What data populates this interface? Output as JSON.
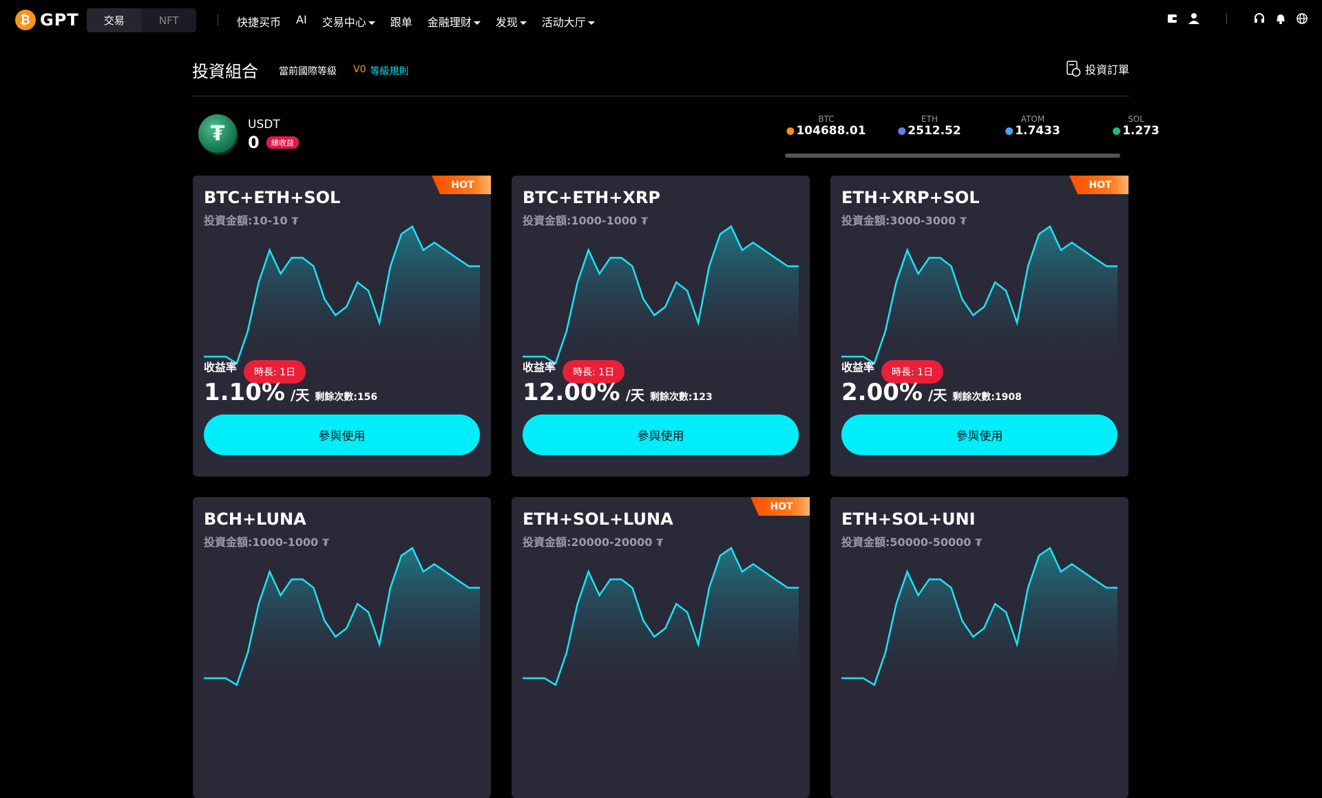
{
  "nav": {
    "logo": "GPT",
    "tabs": [
      "交易",
      "NFT"
    ],
    "links": [
      {
        "label": "快捷买币",
        "dropdown": false
      },
      {
        "label": "AI",
        "dropdown": false
      },
      {
        "label": "交易中心",
        "dropdown": true
      },
      {
        "label": "跟单",
        "dropdown": false
      },
      {
        "label": "金融理财",
        "dropdown": true
      },
      {
        "label": "发现",
        "dropdown": true
      },
      {
        "label": "活动大厅",
        "dropdown": true
      }
    ]
  },
  "header": {
    "title": "投資組合",
    "level_label": "當前國際等級",
    "level": "V0",
    "rules": "等級規則",
    "orders": "投資訂單"
  },
  "balance": {
    "currency": "USDT",
    "amount": "0",
    "badge": "總收益"
  },
  "tickers": [
    {
      "symbol": "BTC",
      "price": "104688.01",
      "color": "#f7931a"
    },
    {
      "symbol": "ETH",
      "price": "2512.52",
      "color": "#627eea"
    },
    {
      "symbol": "ATOM",
      "price": "1.7433",
      "color": "#3fa9f5"
    },
    {
      "symbol": "SOL",
      "price": "1.273",
      "color": "#2bb673"
    }
  ],
  "cards": [
    {
      "name": "BTC+ETH+SOL",
      "amount": "投資金額:10-10",
      "unit": "₮",
      "hot": true,
      "rate_label": "收益率",
      "duration": "時長: 1日",
      "rate": "1.10%",
      "per": "/天",
      "remaining": "剩餘次數:156",
      "button": "參與使用"
    },
    {
      "name": "BTC+ETH+XRP",
      "amount": "投資金額:1000-1000",
      "unit": "₮",
      "hot": false,
      "rate_label": "收益率",
      "duration": "時長: 1日",
      "rate": "12.00%",
      "per": "/天",
      "remaining": "剩餘次數:123",
      "button": "參與使用"
    },
    {
      "name": "ETH+XRP+SOL",
      "amount": "投資金額:3000-3000",
      "unit": "₮",
      "hot": true,
      "rate_label": "收益率",
      "duration": "時長: 1日",
      "rate": "2.00%",
      "per": "/天",
      "remaining": "剩餘次數:1908",
      "button": "參與使用"
    },
    {
      "name": "BCH+LUNA",
      "amount": "投資金額:1000-1000",
      "unit": "₮",
      "hot": false
    },
    {
      "name": "ETH+SOL+LUNA",
      "amount": "投資金額:20000-20000",
      "unit": "₮",
      "hot": true
    },
    {
      "name": "ETH+SOL+UNI",
      "amount": "投資金額:50000-50000",
      "unit": "₮",
      "hot": false
    }
  ],
  "hot_label": "HOT"
}
